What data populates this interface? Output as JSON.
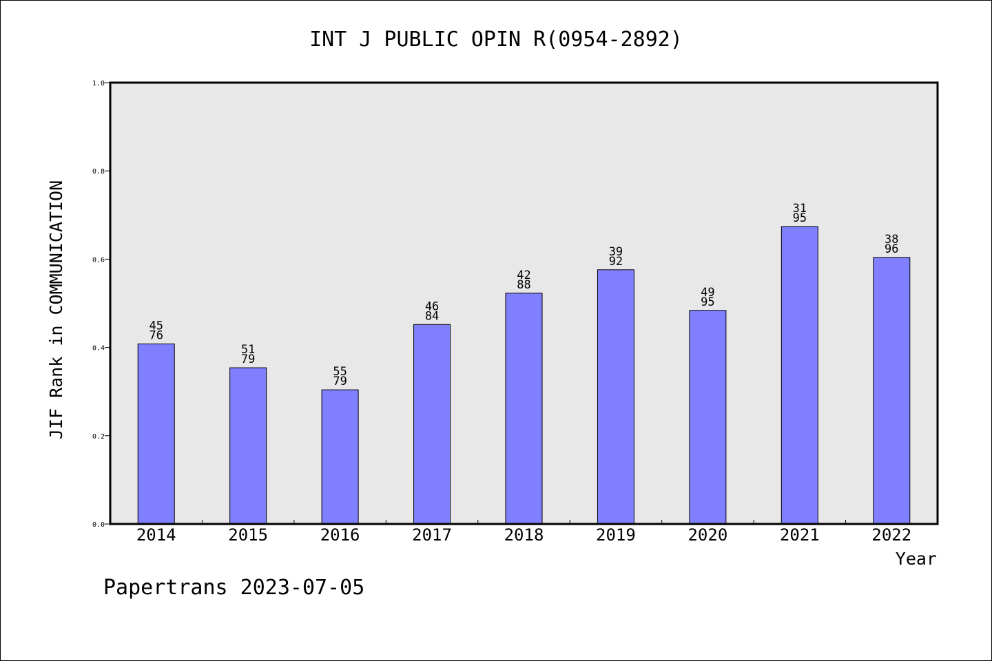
{
  "footer": {
    "text": "Papertrans 2023-07-05"
  },
  "colors": {
    "bar_fill": "#8080ff",
    "plot_bg": "#e8e8e8",
    "frame": "#000000"
  },
  "chart_data": {
    "type": "bar",
    "title": "INT J PUBLIC OPIN R(0954-2892)",
    "xlabel": "Year",
    "ylabel": "JIF Rank in COMMUNICATION",
    "ylim": [
      0,
      1.0
    ],
    "yticks": [
      "0.0",
      "0.2",
      "0.4",
      "0.6",
      "0.8",
      "1.0"
    ],
    "grid": false,
    "categories": [
      "2014",
      "2015",
      "2016",
      "2017",
      "2018",
      "2019",
      "2020",
      "2021",
      "2022"
    ],
    "values": [
      0.408,
      0.354,
      0.304,
      0.452,
      0.523,
      0.576,
      0.484,
      0.674,
      0.604
    ],
    "rank": [
      "45",
      "51",
      "55",
      "46",
      "42",
      "39",
      "49",
      "31",
      "38"
    ],
    "total": [
      "76",
      "79",
      "79",
      "84",
      "88",
      "92",
      "95",
      "95",
      "96"
    ]
  }
}
